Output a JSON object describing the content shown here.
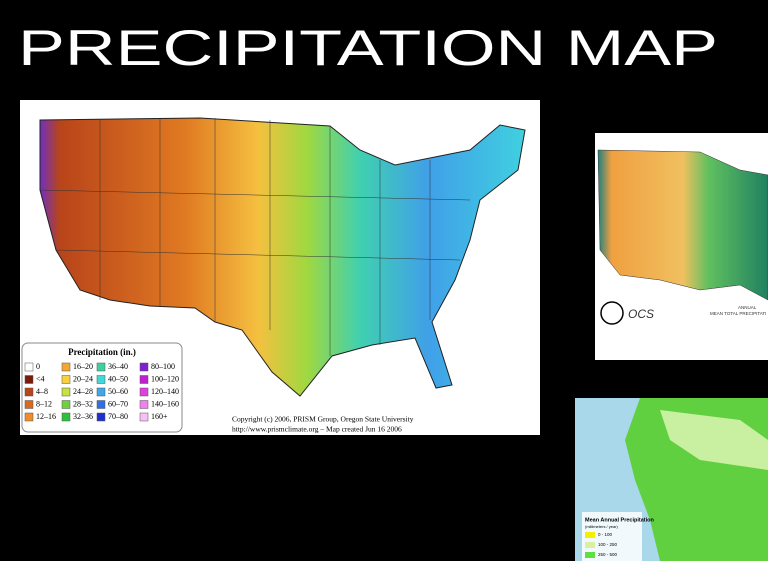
{
  "slide": {
    "title": "PRECIPITATION MAP"
  },
  "main_map": {
    "legend": {
      "title": "Precipitation (in.)",
      "items": [
        {
          "label": "0",
          "color": "#ffffff"
        },
        {
          "label": "<4",
          "color": "#7a1a0a"
        },
        {
          "label": "4–8",
          "color": "#b8441a"
        },
        {
          "label": "8–12",
          "color": "#d86a20"
        },
        {
          "label": "12–16",
          "color": "#f08c2c"
        },
        {
          "label": "16–20",
          "color": "#f5a830"
        },
        {
          "label": "20–24",
          "color": "#f8d040"
        },
        {
          "label": "24–28",
          "color": "#c8e040"
        },
        {
          "label": "28–32",
          "color": "#70d040"
        },
        {
          "label": "32–36",
          "color": "#30c040"
        },
        {
          "label": "36–40",
          "color": "#40d0a0"
        },
        {
          "label": "40–50",
          "color": "#40d8d8"
        },
        {
          "label": "50–60",
          "color": "#40a8e8"
        },
        {
          "label": "60–70",
          "color": "#3070e0"
        },
        {
          "label": "70–80",
          "color": "#2030d0"
        },
        {
          "label": "80–100",
          "color": "#8020d0"
        },
        {
          "label": "100–120",
          "color": "#c020d0"
        },
        {
          "label": "120–140",
          "color": "#e040e0"
        },
        {
          "label": "140–160",
          "color": "#f080f0"
        },
        {
          "label": "160+",
          "color": "#f8c0f8"
        }
      ]
    },
    "credit": [
      "Copyright (c) 2006, PRISM Group, Oregon State University",
      "http://www.prismclimate.org  –  Map created Jun 16 2006"
    ]
  },
  "second_map": {
    "logo_text": "OCS",
    "caption": [
      "ANNUAL",
      "MEAN TOTAL PRECIPITATI"
    ]
  },
  "third_map": {
    "legend": {
      "title": "Mean Annual Precipitation",
      "unit": "(millimeters / year)",
      "items": [
        {
          "label": "0 - 100",
          "color": "#f0f000"
        },
        {
          "label": "100 - 250",
          "color": "#d8f0a0"
        },
        {
          "label": "250 - 500",
          "color": "#60e040"
        }
      ]
    }
  }
}
